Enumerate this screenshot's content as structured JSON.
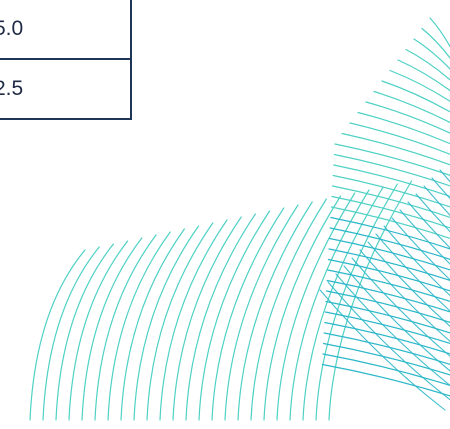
{
  "table": {
    "rows": [
      {
        "value": "5.0"
      },
      {
        "value": "2.5"
      }
    ]
  },
  "decoration": {
    "accent_color": "#4fd1c5",
    "secondary_color": "#2bb7c9",
    "table_border_color": "#1f3557"
  }
}
